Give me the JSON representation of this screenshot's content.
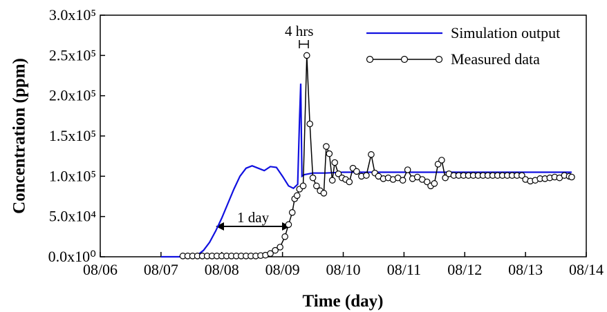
{
  "chart_data": {
    "type": "line",
    "xlabel": "Time (day)",
    "ylabel": "Concentration (ppm)",
    "xlim": [
      0,
      8
    ],
    "ylim": [
      0,
      300000
    ],
    "xticks": [
      {
        "value": 0,
        "label": "08/06"
      },
      {
        "value": 1,
        "label": "08/07"
      },
      {
        "value": 2,
        "label": "08/08"
      },
      {
        "value": 3,
        "label": "08/09"
      },
      {
        "value": 4,
        "label": "08/10"
      },
      {
        "value": 5,
        "label": "08/11"
      },
      {
        "value": 6,
        "label": "08/12"
      },
      {
        "value": 7,
        "label": "08/13"
      },
      {
        "value": 8,
        "label": "08/14"
      }
    ],
    "yticks": [
      {
        "value": 0,
        "label": "0.0x10⁰"
      },
      {
        "value": 50000,
        "label": "5.0x10⁴"
      },
      {
        "value": 100000,
        "label": "1.0x10⁵"
      },
      {
        "value": 150000,
        "label": "1.5x10⁵"
      },
      {
        "value": 200000,
        "label": "2.0x10⁵"
      },
      {
        "value": 250000,
        "label": "2.5x10⁵"
      },
      {
        "value": 300000,
        "label": "3.0x10⁵"
      }
    ],
    "legend": "upper right",
    "annotations": [
      "4 hrs",
      "1 day"
    ],
    "series": [
      {
        "name": "Simulation output",
        "color": "#1010e0",
        "marker": "none",
        "x": [
          1,
          1.5,
          1.6,
          1.7,
          1.8,
          1.9,
          2.0,
          2.1,
          2.2,
          2.3,
          2.4,
          2.5,
          2.6,
          2.7,
          2.8,
          2.9,
          3.0,
          3.1,
          3.18,
          3.25,
          3.28,
          3.3,
          3.32,
          3.36,
          3.5,
          3.7,
          4.0,
          5.0,
          6.0,
          7.0,
          7.76
        ],
        "values": [
          0,
          0,
          2000,
          8000,
          18000,
          32000,
          48000,
          66000,
          84000,
          100000,
          110000,
          113000,
          110000,
          107000,
          112000,
          111000,
          100000,
          88000,
          85000,
          90000,
          170000,
          215000,
          100000,
          102000,
          104000,
          104000,
          105000,
          105000,
          105000,
          105000,
          105000
        ]
      },
      {
        "name": "Measured data",
        "color": "#000000",
        "marker": "circle",
        "x": [
          1.36,
          1.44,
          1.52,
          1.6,
          1.68,
          1.76,
          1.84,
          1.92,
          2.0,
          2.08,
          2.16,
          2.24,
          2.32,
          2.4,
          2.48,
          2.56,
          2.64,
          2.72,
          2.8,
          2.88,
          2.96,
          3.04,
          3.1,
          3.16,
          3.2,
          3.24,
          3.28,
          3.34,
          3.4,
          3.45,
          3.5,
          3.56,
          3.62,
          3.68,
          3.72,
          3.77,
          3.82,
          3.86,
          3.92,
          3.98,
          4.04,
          4.1,
          4.16,
          4.22,
          4.3,
          4.38,
          4.46,
          4.52,
          4.58,
          4.66,
          4.74,
          4.82,
          4.9,
          4.98,
          5.06,
          5.14,
          5.22,
          5.3,
          5.38,
          5.44,
          5.5,
          5.56,
          5.62,
          5.68,
          5.74,
          5.82,
          5.9,
          5.98,
          6.06,
          6.14,
          6.22,
          6.3,
          6.38,
          6.46,
          6.54,
          6.62,
          6.7,
          6.78,
          6.86,
          6.94,
          7.0,
          7.08,
          7.16,
          7.24,
          7.32,
          7.4,
          7.48,
          7.56,
          7.64,
          7.72,
          7.76
        ],
        "values": [
          1000,
          1000,
          1000,
          1000,
          1000,
          1000,
          1000,
          1000,
          1000,
          1000,
          1000,
          1000,
          1000,
          1000,
          1000,
          1000,
          1500,
          2000,
          4000,
          8000,
          12000,
          25000,
          40000,
          55000,
          72000,
          76000,
          84000,
          88000,
          250000,
          165000,
          98000,
          88000,
          82000,
          79000,
          137000,
          128000,
          95000,
          117000,
          103000,
          98000,
          96000,
          93000,
          110000,
          106000,
          100000,
          101000,
          127000,
          104000,
          100000,
          97000,
          98000,
          96000,
          98000,
          95000,
          108000,
          97000,
          99000,
          96000,
          93000,
          88000,
          91000,
          115000,
          120000,
          98000,
          103000,
          101000,
          101000,
          101000,
          101000,
          101000,
          101000,
          101000,
          101000,
          101000,
          101000,
          101000,
          101000,
          101000,
          101000,
          101000,
          96000,
          94000,
          95000,
          97000,
          97000,
          98000,
          99000,
          98000,
          101000,
          100000,
          99000
        ]
      }
    ]
  }
}
